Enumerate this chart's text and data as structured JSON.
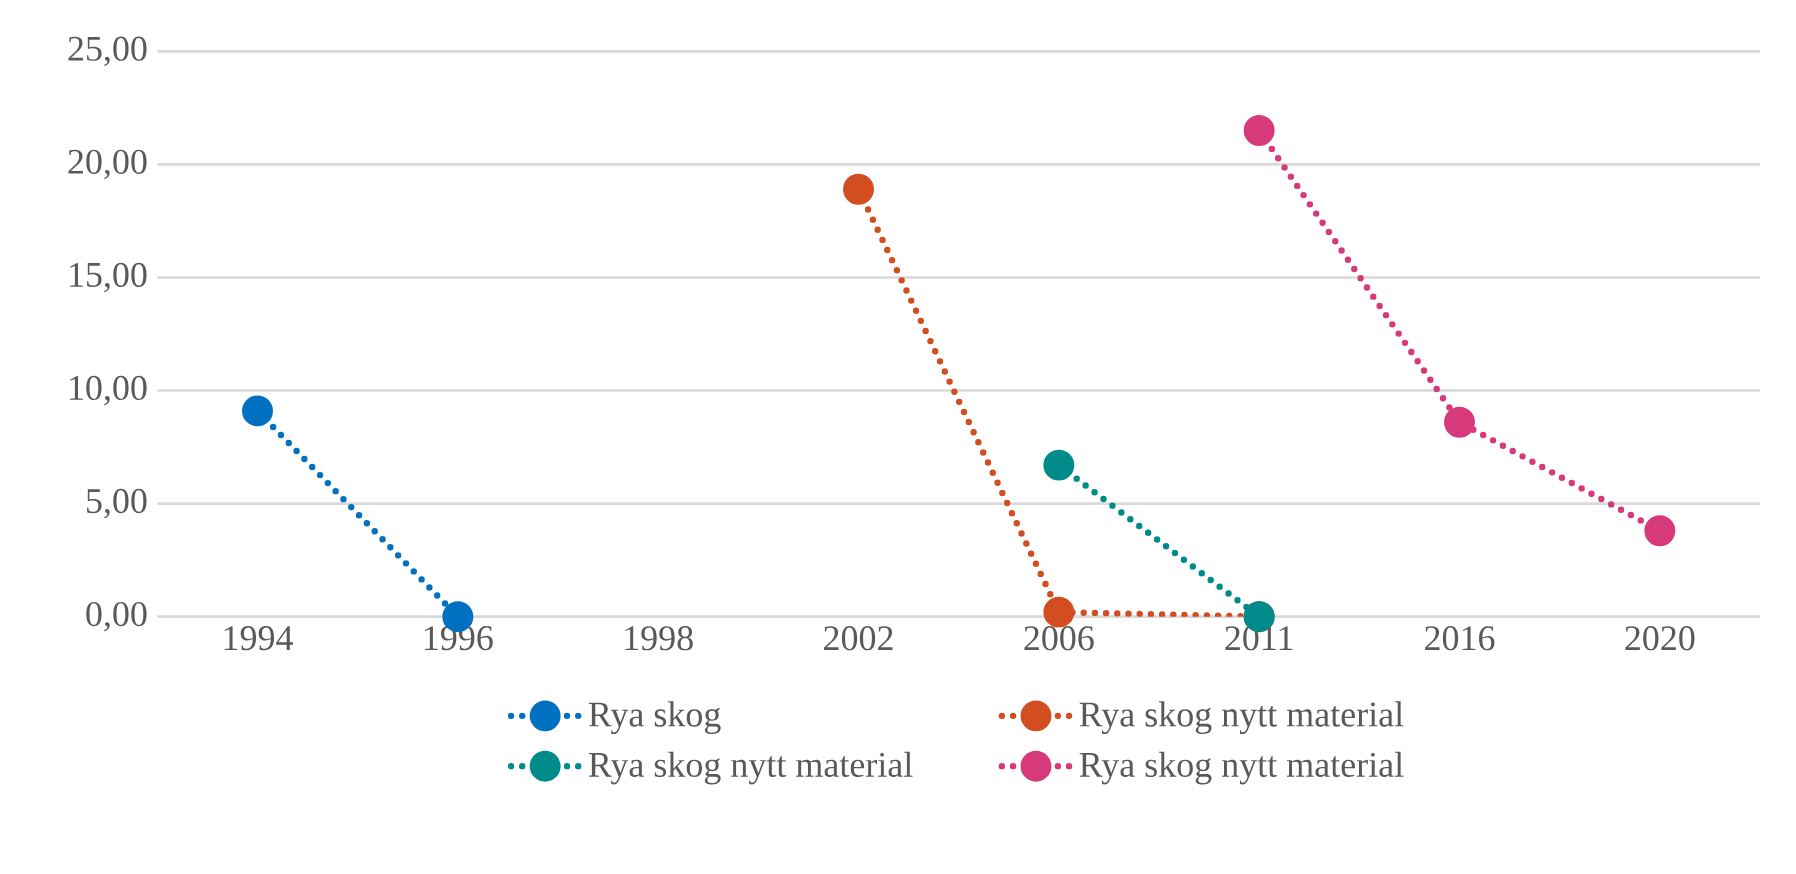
{
  "chart_data": {
    "type": "line",
    "categories": [
      "1994",
      "1996",
      "1998",
      "2002",
      "2006",
      "2011",
      "2016",
      "2020"
    ],
    "series": [
      {
        "name": "Rya skog",
        "color": "#0070c0",
        "values": [
          9.1,
          0.0,
          null,
          null,
          null,
          null,
          null,
          null
        ]
      },
      {
        "name": "Rya skog nytt material",
        "color": "#d24d20",
        "values": [
          null,
          null,
          null,
          18.9,
          0.2,
          0.0,
          null,
          null
        ]
      },
      {
        "name": "Rya skog nytt material",
        "color": "#008b8b",
        "values": [
          null,
          null,
          null,
          null,
          6.7,
          0.0,
          null,
          null
        ]
      },
      {
        "name": "Rya skog nytt material",
        "color": "#d63a7a",
        "values": [
          null,
          null,
          null,
          null,
          null,
          21.5,
          8.6,
          3.8
        ]
      }
    ],
    "ylim": [
      0,
      25
    ],
    "yticks": [
      {
        "value": 0,
        "label": "0,00"
      },
      {
        "value": 5,
        "label": "5,00"
      },
      {
        "value": 10,
        "label": "10,00"
      },
      {
        "value": 15,
        "label": "15,00"
      },
      {
        "value": 20,
        "label": "20,00"
      },
      {
        "value": 25,
        "label": "25,00"
      }
    ],
    "grid": "y",
    "legend": "bottom",
    "marker": "circle",
    "line_style": "dotted"
  }
}
